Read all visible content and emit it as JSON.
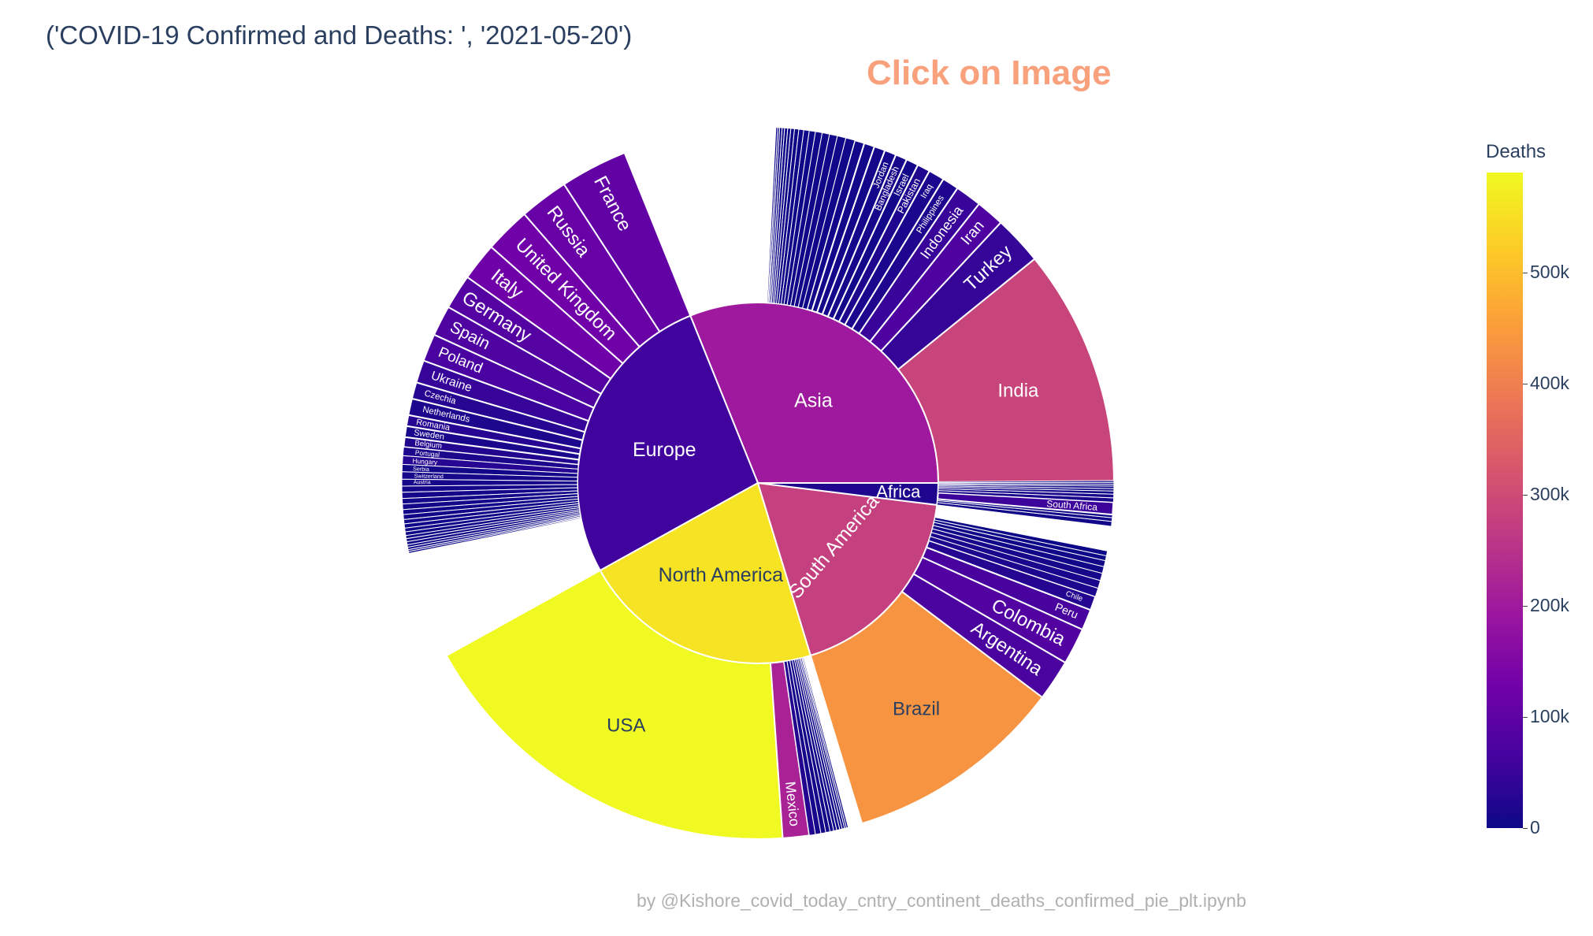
{
  "title": "('COVID-19 Confirmed and Deaths: ', '2021-05-20')",
  "annotation": "Click on Image",
  "credit": "by @Kishore_covid_today_cntry_continent_deaths_confirmed_pie_plt.ipynb",
  "colorbar": {
    "title": "Deaths",
    "ticks": [
      "0",
      "100k",
      "200k",
      "300k",
      "400k",
      "500k"
    ]
  },
  "chart_data": {
    "type": "sunburst",
    "color_variable": "Deaths",
    "colorscale": [
      "#0d0887",
      "#46039f",
      "#7201a8",
      "#9c179e",
      "#bd3786",
      "#d8576b",
      "#ed7953",
      "#fb9f3a",
      "#fdca26",
      "#f0f921"
    ],
    "color_range": [
      0,
      590000
    ],
    "continents": [
      {
        "name": "Asia",
        "deaths": 200000,
        "start_deg": 0,
        "end_deg": 112,
        "countries": [
          {
            "name": "India",
            "deaths": 290000,
            "deg": 39
          },
          {
            "name": "Turkey",
            "deaths": 45000,
            "deg": 8
          },
          {
            "name": "Iran",
            "deaths": 77000,
            "deg": 4.6
          },
          {
            "name": "Indonesia",
            "deaths": 49000,
            "deg": 4.3
          },
          {
            "name": "Philippines",
            "deaths": 19000,
            "deg": 2.7
          },
          {
            "name": "Iraq",
            "deaths": 16000,
            "deg": 2.6
          },
          {
            "name": "Pakistan",
            "deaths": 20000,
            "deg": 2.1
          },
          {
            "name": "Israel",
            "deaths": 6400,
            "deg": 2.0
          },
          {
            "name": "Bangladesh",
            "deaths": 12000,
            "deg": 1.9
          },
          {
            "name": "Jordan",
            "deaths": 9600,
            "deg": 1.9
          },
          {
            "name": "",
            "deaths": 8000,
            "deg": 1.8
          },
          {
            "name": "",
            "deaths": 7000,
            "deg": 1.7
          },
          {
            "name": "",
            "deaths": 6000,
            "deg": 1.6
          },
          {
            "name": "",
            "deaths": 5000,
            "deg": 1.5
          },
          {
            "name": "",
            "deaths": 4500,
            "deg": 1.4
          },
          {
            "name": "",
            "deaths": 4000,
            "deg": 1.3
          },
          {
            "name": "",
            "deaths": 3500,
            "deg": 1.2
          },
          {
            "name": "",
            "deaths": 3000,
            "deg": 1.1
          },
          {
            "name": "",
            "deaths": 2500,
            "deg": 1.0
          },
          {
            "name": "",
            "deaths": 2000,
            "deg": 0.9
          },
          {
            "name": "",
            "deaths": 1500,
            "deg": 0.8
          },
          {
            "name": "",
            "deaths": 1000,
            "deg": 0.7
          },
          {
            "name": "",
            "deaths": 800,
            "deg": 0.6
          },
          {
            "name": "",
            "deaths": 600,
            "deg": 0.5
          },
          {
            "name": "",
            "deaths": 400,
            "deg": 0.5
          },
          {
            "name": "",
            "deaths": 300,
            "deg": 0.4
          },
          {
            "name": "",
            "deaths": 200,
            "deg": 0.4
          },
          {
            "name": "",
            "deaths": 100,
            "deg": 0.3
          },
          {
            "name": "",
            "deaths": 50,
            "deg": 0.3
          }
        ]
      },
      {
        "name": "Europe",
        "deaths": 60000,
        "start_deg": 112,
        "end_deg": 209,
        "countries": [
          {
            "name": "France",
            "deaths": 108000,
            "deg": 11
          },
          {
            "name": "Russia",
            "deaths": 116000,
            "deg": 8
          },
          {
            "name": "United Kingdom",
            "deaths": 128000,
            "deg": 7.5
          },
          {
            "name": "Italy",
            "deaths": 125000,
            "deg": 6.2
          },
          {
            "name": "Germany",
            "deaths": 87000,
            "deg": 5.7
          },
          {
            "name": "Spain",
            "deaths": 79000,
            "deg": 5.0
          },
          {
            "name": "Poland",
            "deaths": 72000,
            "deg": 4.5
          },
          {
            "name": "Ukraine",
            "deaths": 48000,
            "deg": 3.7
          },
          {
            "name": "Czechia",
            "deaths": 30000,
            "deg": 2.7
          },
          {
            "name": "Netherlands",
            "deaths": 17500,
            "deg": 2.7
          },
          {
            "name": "Romania",
            "deaths": 29000,
            "deg": 1.8
          },
          {
            "name": "Sweden",
            "deaths": 14300,
            "deg": 1.8
          },
          {
            "name": "Belgium",
            "deaths": 24800,
            "deg": 1.6
          },
          {
            "name": "Portugal",
            "deaths": 17000,
            "deg": 1.4
          },
          {
            "name": "Hungary",
            "deaths": 29000,
            "deg": 1.4
          },
          {
            "name": "Serbia",
            "deaths": 6500,
            "deg": 1.2
          },
          {
            "name": "Switzerland",
            "deaths": 10500,
            "deg": 1.2
          },
          {
            "name": "Austria",
            "deaths": 10500,
            "deg": 1.1
          },
          {
            "name": "",
            "deaths": 9000,
            "deg": 1.0
          },
          {
            "name": "",
            "deaths": 8000,
            "deg": 1.0
          },
          {
            "name": "",
            "deaths": 7000,
            "deg": 0.9
          },
          {
            "name": "",
            "deaths": 6000,
            "deg": 0.9
          },
          {
            "name": "",
            "deaths": 5000,
            "deg": 0.8
          },
          {
            "name": "",
            "deaths": 4000,
            "deg": 0.8
          },
          {
            "name": "",
            "deaths": 3000,
            "deg": 0.7
          },
          {
            "name": "",
            "deaths": 2500,
            "deg": 0.7
          },
          {
            "name": "",
            "deaths": 2000,
            "deg": 0.6
          },
          {
            "name": "",
            "deaths": 1500,
            "deg": 0.6
          },
          {
            "name": "",
            "deaths": 1000,
            "deg": 0.5
          },
          {
            "name": "",
            "deaths": 800,
            "deg": 0.5
          },
          {
            "name": "",
            "deaths": 600,
            "deg": 0.5
          },
          {
            "name": "",
            "deaths": 400,
            "deg": 0.4
          },
          {
            "name": "",
            "deaths": 300,
            "deg": 0.4
          },
          {
            "name": "",
            "deaths": 200,
            "deg": 0.3
          },
          {
            "name": "",
            "deaths": 100,
            "deg": 0.3
          }
        ]
      },
      {
        "name": "North America",
        "deaths": 560000,
        "start_deg": 209,
        "end_deg": 287,
        "countries": [
          {
            "name": "USA",
            "deaths": 594000,
            "deg": 65
          },
          {
            "name": "Mexico",
            "deaths": 220000,
            "deg": 4.3
          },
          {
            "name": "",
            "deaths": 25000,
            "deg": 1.0
          },
          {
            "name": "",
            "deaths": 12000,
            "deg": 0.9
          },
          {
            "name": "",
            "deaths": 8000,
            "deg": 0.8
          },
          {
            "name": "",
            "deaths": 6000,
            "deg": 0.7
          },
          {
            "name": "",
            "deaths": 4000,
            "deg": 0.6
          },
          {
            "name": "",
            "deaths": 3000,
            "deg": 0.5
          },
          {
            "name": "",
            "deaths": 2000,
            "deg": 0.5
          },
          {
            "name": "",
            "deaths": 1000,
            "deg": 0.4
          },
          {
            "name": "",
            "deaths": 500,
            "deg": 0.4
          },
          {
            "name": "",
            "deaths": 200,
            "deg": 0.3
          },
          {
            "name": "",
            "deaths": 100,
            "deg": 0.3
          }
        ]
      },
      {
        "name": "South America",
        "deaths": 280000,
        "start_deg": 287,
        "end_deg": 353,
        "countries": [
          {
            "name": "Brazil",
            "deaths": 440000,
            "deg": 36
          },
          {
            "name": "Argentina",
            "deaths": 73000,
            "deg": 6.7
          },
          {
            "name": "Colombia",
            "deaths": 83000,
            "deg": 6.0
          },
          {
            "name": "Peru",
            "deaths": 68000,
            "deg": 3.4
          },
          {
            "name": "Chile",
            "deaths": 28000,
            "deg": 2.3
          },
          {
            "name": "",
            "deaths": 18000,
            "deg": 1.4
          },
          {
            "name": "",
            "deaths": 13000,
            "deg": 1.3
          },
          {
            "name": "",
            "deaths": 12000,
            "deg": 1.2
          },
          {
            "name": "",
            "deaths": 5000,
            "deg": 1.1
          },
          {
            "name": "",
            "deaths": 3000,
            "deg": 1.0
          },
          {
            "name": "",
            "deaths": 500,
            "deg": 0.8
          },
          {
            "name": "",
            "deaths": 100,
            "deg": 0.8
          }
        ]
      },
      {
        "name": "Africa",
        "deaths": 20000,
        "start_deg": 353,
        "end_deg": 360,
        "countries": [
          {
            "name": "",
            "deaths": 3000,
            "deg": 0.8
          },
          {
            "name": "",
            "deaths": 4000,
            "deg": 0.6
          },
          {
            "name": "",
            "deaths": 3500,
            "deg": 0.5
          },
          {
            "name": "South Africa",
            "deaths": 55000,
            "deg": 2.0
          },
          {
            "name": "",
            "deaths": 15000,
            "deg": 0.7
          },
          {
            "name": "",
            "deaths": 12000,
            "deg": 0.6
          },
          {
            "name": "",
            "deaths": 6000,
            "deg": 0.5
          },
          {
            "name": "",
            "deaths": 2500,
            "deg": 0.4
          },
          {
            "name": "",
            "deaths": 1500,
            "deg": 0.4
          },
          {
            "name": "",
            "deaths": 1000,
            "deg": 0.3
          },
          {
            "name": "",
            "deaths": 600,
            "deg": 0.3
          },
          {
            "name": "",
            "deaths": 300,
            "deg": 0.3
          }
        ]
      }
    ]
  }
}
